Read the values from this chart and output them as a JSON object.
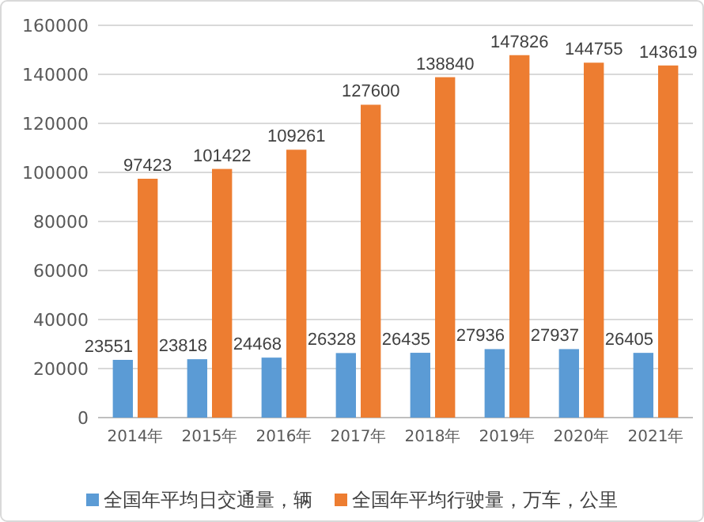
{
  "chart_data": {
    "type": "bar",
    "categories": [
      "2014年",
      "2015年",
      "2016年",
      "2017年",
      "2018年",
      "2019年",
      "2020年",
      "2021年"
    ],
    "series": [
      {
        "name": "全国年平均日交通量，辆",
        "color": "#5b9bd5",
        "values": [
          23551,
          23818,
          24468,
          26328,
          26435,
          27936,
          27937,
          26405
        ]
      },
      {
        "name": "全国年平均行驶量，万车，公里",
        "color": "#ed7d31",
        "values": [
          97423,
          101422,
          109261,
          127600,
          138840,
          147826,
          144755,
          143619
        ]
      }
    ],
    "ylim": [
      0,
      160000
    ],
    "yticks": [
      0,
      20000,
      40000,
      60000,
      80000,
      100000,
      120000,
      140000,
      160000
    ],
    "grid": "y",
    "legend": "bottom",
    "data_labels": true
  }
}
